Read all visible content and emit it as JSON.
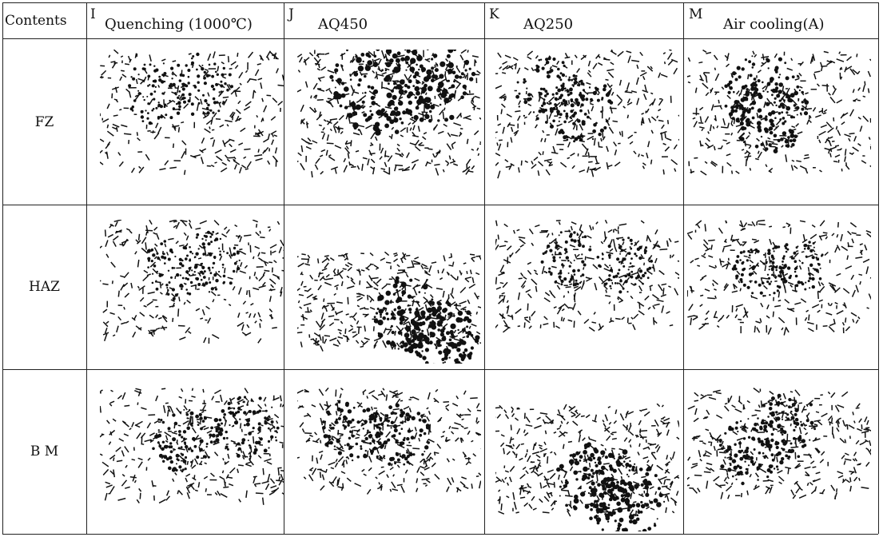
{
  "table": {
    "corner_label": "Contents",
    "columns": [
      {
        "letter": "I",
        "title": "Quenching (1000℃)"
      },
      {
        "letter": "J",
        "title": "AQ450"
      },
      {
        "letter": "K",
        "title": "AQ250"
      },
      {
        "letter": "M",
        "title": "Air cooling(A)"
      }
    ],
    "rows": [
      {
        "label": "FZ"
      },
      {
        "label": "HAZ"
      },
      {
        "label": "B M"
      }
    ]
  },
  "micrographs": [
    {
      "row": "FZ",
      "column": "I",
      "density": 0.35
    },
    {
      "row": "FZ",
      "column": "J",
      "density": 0.8
    },
    {
      "row": "FZ",
      "column": "K",
      "density": 0.45
    },
    {
      "row": "FZ",
      "column": "M",
      "density": 0.55
    },
    {
      "row": "HAZ",
      "column": "I",
      "density": 0.35
    },
    {
      "row": "HAZ",
      "column": "J",
      "density": 0.75
    },
    {
      "row": "HAZ",
      "column": "K",
      "density": 0.35
    },
    {
      "row": "HAZ",
      "column": "M",
      "density": 0.35
    },
    {
      "row": "B M",
      "column": "I",
      "density": 0.45
    },
    {
      "row": "B M",
      "column": "J",
      "density": 0.5
    },
    {
      "row": "B M",
      "column": "K",
      "density": 0.7
    },
    {
      "row": "B M",
      "column": "M",
      "density": 0.5
    }
  ]
}
